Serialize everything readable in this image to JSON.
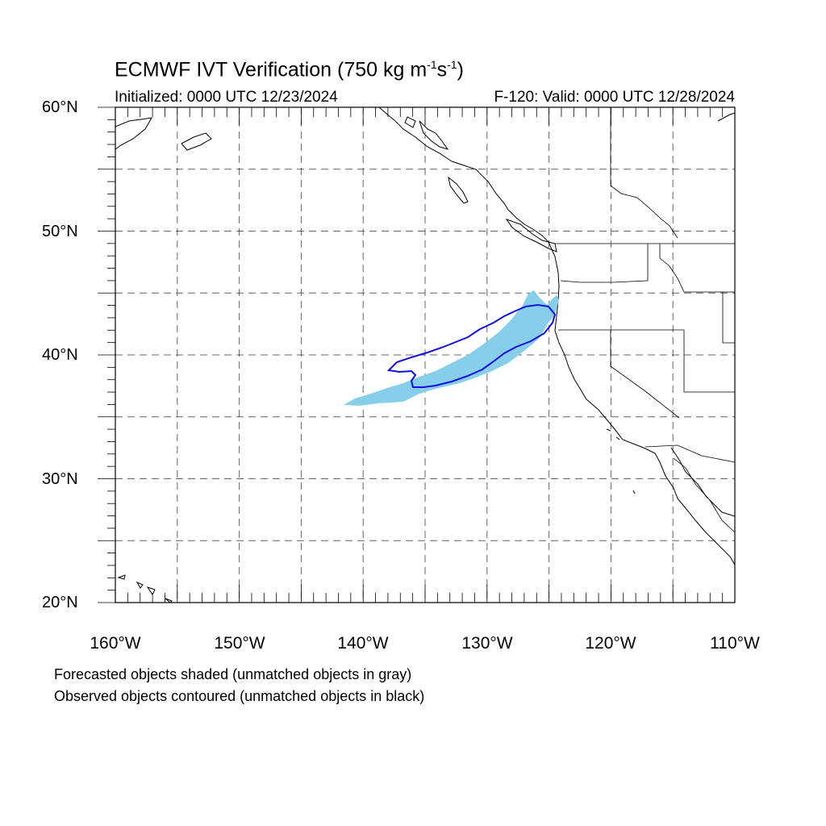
{
  "title": {
    "main": "ECMWF IVT Verification (750 kg m",
    "exp1": "-1",
    "mid": "s",
    "exp2": "-1",
    "end": ")"
  },
  "subtitle": {
    "left": "Initialized: 0000 UTC 12/23/2024",
    "right": "F-120: Valid: 0000 UTC 12/28/2024"
  },
  "map": {
    "lon_range": [
      -160,
      -110
    ],
    "lat_range": [
      20,
      60
    ],
    "lat_labels": [
      "60°N",
      "50°N",
      "40°N",
      "30°N",
      "20°N"
    ],
    "lon_labels": [
      "160°W",
      "150°W",
      "140°W",
      "130°W",
      "120°W",
      "110°W"
    ],
    "forecast_color": "#87ceeb",
    "observed_color": "#1010e0"
  },
  "caption": {
    "line1": "Forecasted objects shaded (unmatched objects in gray)",
    "line2": "Observed objects contoured (unmatched objects in black)"
  }
}
